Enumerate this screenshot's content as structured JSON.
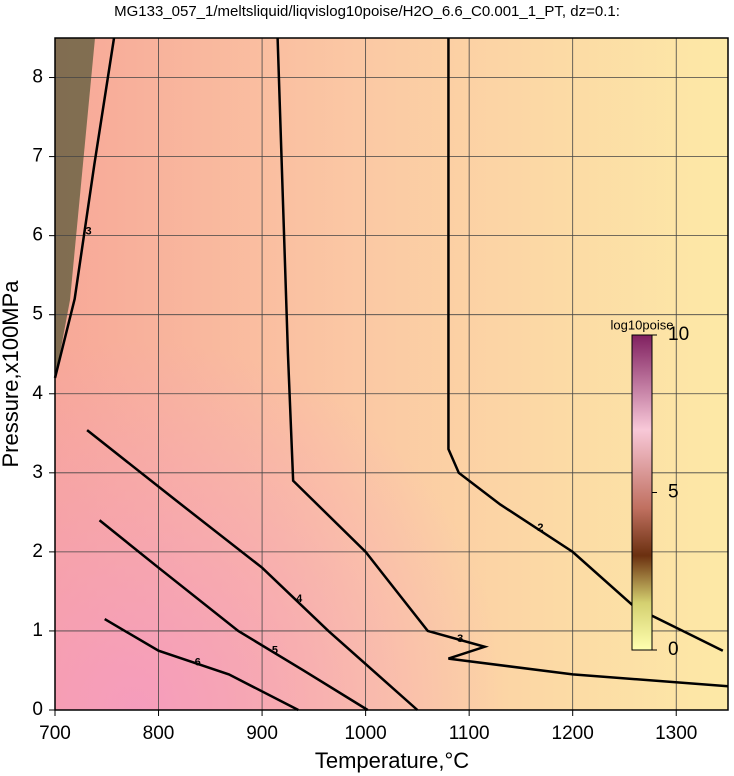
{
  "chart_data": {
    "type": "contour",
    "title": "MG133_057_1/meltsliquid/liqvislog10poise/H2O_6.6_C0.001_1_PT, dz=0.1:",
    "xlabel": "Temperature,°C",
    "ylabel": "Pressure,x100MPa",
    "xlim": [
      700,
      1350
    ],
    "ylim": [
      0,
      8.5
    ],
    "xticks": [
      700,
      800,
      900,
      1000,
      1100,
      1200,
      1300
    ],
    "yticks": [
      0,
      1,
      2,
      3,
      4,
      5,
      6,
      7,
      8
    ],
    "grid": true,
    "contours": [
      {
        "level": 2,
        "x": [
          1080,
          1080,
          1090,
          1130,
          1200,
          1260,
          1345
        ],
        "y": [
          8.5,
          3.3,
          3.0,
          2.6,
          2.0,
          1.3,
          0.75
        ]
      },
      {
        "level": 3,
        "x": [
          915,
          925,
          930,
          1000,
          1060,
          1115,
          1080,
          1200,
          1350
        ],
        "y": [
          8.5,
          4.5,
          2.9,
          2.0,
          1.0,
          0.8,
          0.65,
          0.45,
          0.3
        ]
      },
      {
        "level": 3,
        "x": [
          757,
          738,
          719,
          700
        ],
        "y": [
          8.5,
          6.9,
          5.2,
          4.2
        ]
      },
      {
        "level": 4,
        "x": [
          731,
          815,
          900,
          964,
          1050
        ],
        "y": [
          3.54,
          2.67,
          1.8,
          1.0,
          0
        ]
      },
      {
        "level": 5,
        "x": [
          743,
          800,
          877,
          940,
          1002
        ],
        "y": [
          2.4,
          1.8,
          1.0,
          0.5,
          0
        ]
      },
      {
        "level": 6,
        "x": [
          748,
          800,
          868,
          935
        ],
        "y": [
          1.15,
          0.75,
          0.45,
          0
        ]
      }
    ],
    "colorbar": {
      "label": "log10poise",
      "lim": [
        0,
        10
      ],
      "ticks": [
        0,
        5,
        10
      ]
    }
  }
}
